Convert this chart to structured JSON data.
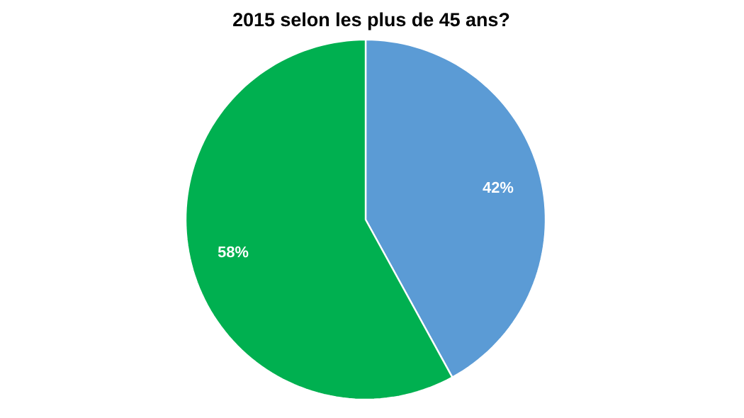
{
  "chart_data": {
    "type": "pie",
    "title": "2015 selon les plus de 45 ans?",
    "categories": [
      null,
      null
    ],
    "values": [
      42,
      58
    ],
    "colors": [
      "#5b9bd5",
      "#00b050"
    ],
    "value_labels": [
      "42%",
      "58%"
    ]
  }
}
